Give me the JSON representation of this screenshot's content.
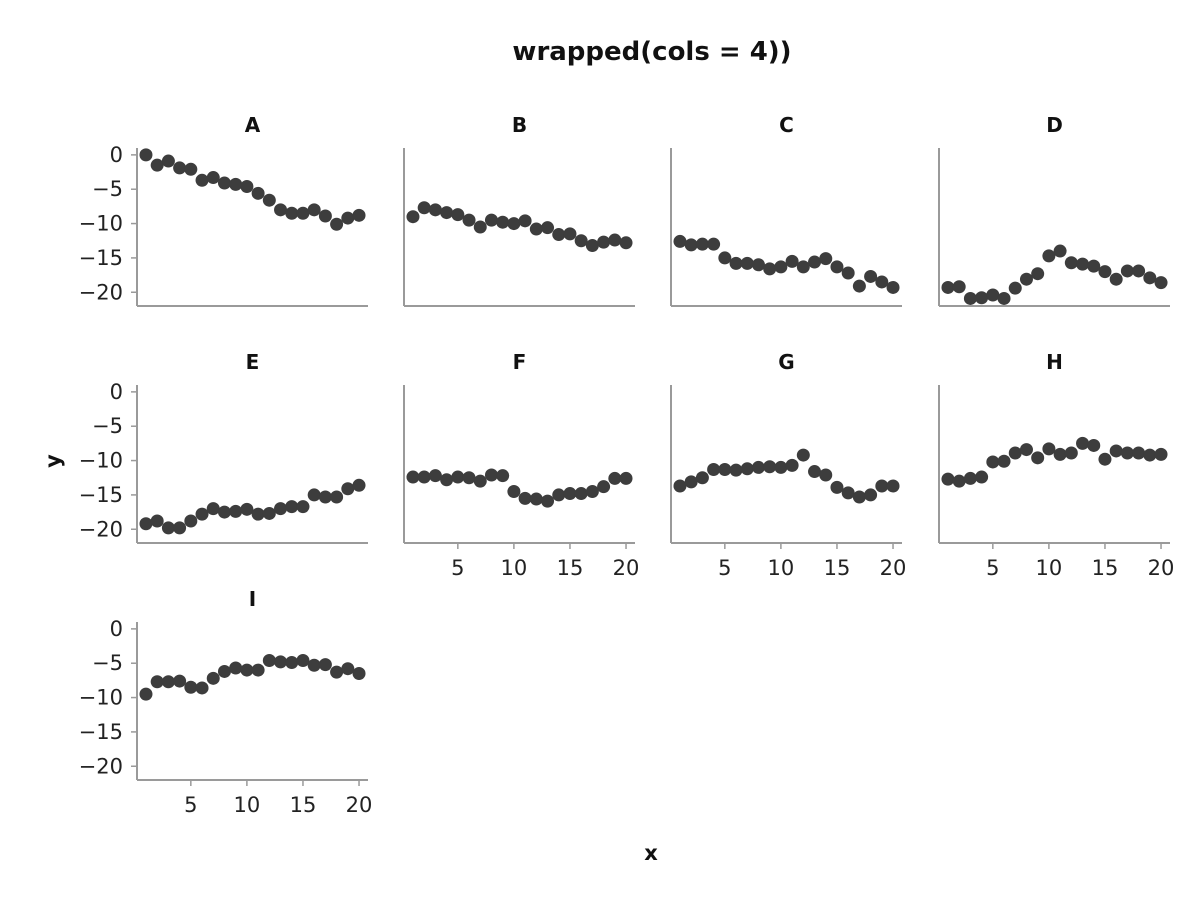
{
  "chart_data": {
    "type": "scatter",
    "title": "wrapped(cols = 4))",
    "xlabel": "x",
    "ylabel": "y",
    "layout": {
      "cols": 4,
      "rows": 3
    },
    "xlim": [
      0.2,
      20.8
    ],
    "ylim": [
      -22,
      1
    ],
    "xticks": [
      5,
      10,
      15,
      20
    ],
    "yticks": [
      0,
      -5,
      -10,
      -15,
      -20
    ],
    "ytick_labels": [
      "0",
      "−5",
      "−10",
      "−15",
      "−20"
    ],
    "grid": false,
    "x": [
      1,
      2,
      3,
      4,
      5,
      6,
      7,
      8,
      9,
      10,
      11,
      12,
      13,
      14,
      15,
      16,
      17,
      18,
      19,
      20
    ],
    "panels": [
      {
        "name": "A",
        "values": [
          0,
          -1.5,
          -0.9,
          -1.9,
          -2.1,
          -3.7,
          -3.3,
          -4.1,
          -4.3,
          -4.6,
          -5.6,
          -6.6,
          -8.0,
          -8.5,
          -8.5,
          -8.0,
          -8.9,
          -10.1,
          -9.2,
          -8.8
        ]
      },
      {
        "name": "B",
        "values": [
          -9.0,
          -7.7,
          -8.0,
          -8.4,
          -8.7,
          -9.5,
          -10.5,
          -9.5,
          -9.8,
          -10.0,
          -9.6,
          -10.8,
          -10.6,
          -11.6,
          -11.5,
          -12.5,
          -13.2,
          -12.7,
          -12.4,
          -12.8
        ]
      },
      {
        "name": "C",
        "values": [
          -12.6,
          -13.1,
          -13.0,
          -13.0,
          -15.0,
          -15.8,
          -15.8,
          -16.0,
          -16.6,
          -16.3,
          -15.5,
          -16.3,
          -15.6,
          -15.1,
          -16.3,
          -17.2,
          -19.1,
          -17.7,
          -18.5,
          -19.3
        ]
      },
      {
        "name": "D",
        "values": [
          -19.3,
          -19.2,
          -20.9,
          -20.8,
          -20.4,
          -20.9,
          -19.4,
          -18.1,
          -17.3,
          -14.7,
          -14.0,
          -15.7,
          -15.9,
          -16.2,
          -17.0,
          -18.1,
          -16.9,
          -16.9,
          -17.9,
          -18.6
        ]
      },
      {
        "name": "E",
        "values": [
          -19.2,
          -18.8,
          -19.8,
          -19.8,
          -18.8,
          -17.8,
          -17.0,
          -17.5,
          -17.4,
          -17.1,
          -17.8,
          -17.7,
          -17.0,
          -16.7,
          -16.7,
          -15.0,
          -15.3,
          -15.3,
          -14.1,
          -13.6
        ]
      },
      {
        "name": "F",
        "values": [
          -12.4,
          -12.4,
          -12.2,
          -12.8,
          -12.4,
          -12.5,
          -13.0,
          -12.1,
          -12.2,
          -14.5,
          -15.5,
          -15.6,
          -15.9,
          -15.0,
          -14.8,
          -14.8,
          -14.5,
          -13.8,
          -12.6,
          -12.6
        ]
      },
      {
        "name": "G",
        "values": [
          -13.7,
          -13.1,
          -12.5,
          -11.3,
          -11.3,
          -11.4,
          -11.2,
          -11.0,
          -10.9,
          -11.0,
          -10.7,
          -9.2,
          -11.6,
          -12.1,
          -13.9,
          -14.7,
          -15.3,
          -15.0,
          -13.7,
          -13.7
        ]
      },
      {
        "name": "H",
        "values": [
          -12.7,
          -13.0,
          -12.6,
          -12.4,
          -10.2,
          -10.1,
          -8.9,
          -8.4,
          -9.6,
          -8.3,
          -9.1,
          -8.9,
          -7.5,
          -7.8,
          -9.8,
          -8.6,
          -8.9,
          -8.9,
          -9.2,
          -9.1
        ]
      },
      {
        "name": "I",
        "values": [
          -9.5,
          -7.7,
          -7.7,
          -7.6,
          -8.5,
          -8.6,
          -7.2,
          -6.2,
          -5.7,
          -6.0,
          -6.0,
          -4.6,
          -4.8,
          -4.9,
          -4.6,
          -5.3,
          -5.2,
          -6.3,
          -5.8,
          -6.5
        ]
      }
    ]
  }
}
